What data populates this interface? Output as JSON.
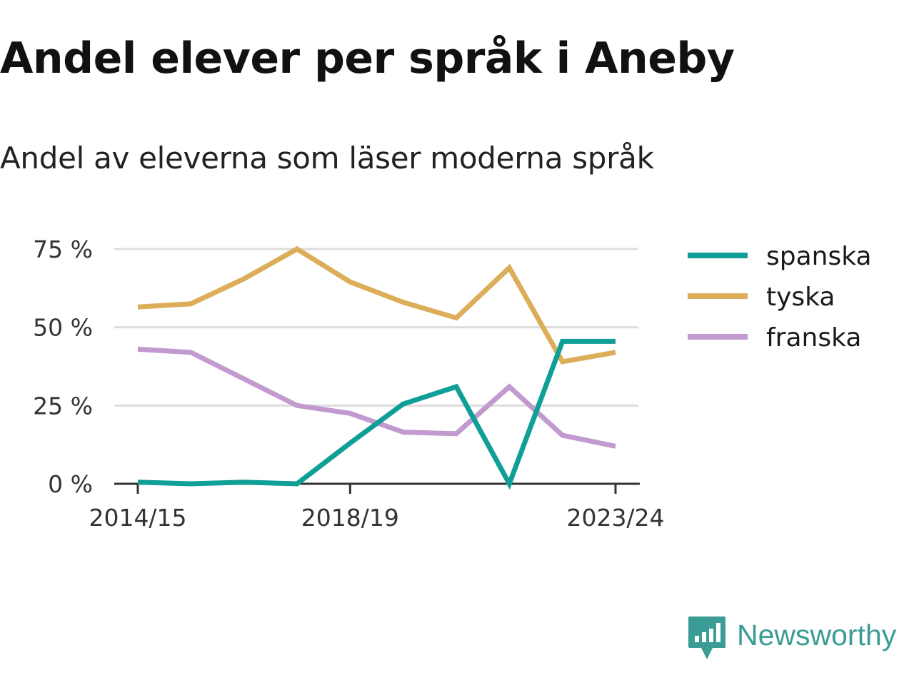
{
  "title": "Andel elever per språk i Aneby",
  "subtitle": "Andel av eleverna som läser moderna språk",
  "brand": {
    "name": "Newsworthy",
    "icon": "newsworthy-logo-icon",
    "color": "#3a9c95"
  },
  "chart_data": {
    "type": "line",
    "x": [
      "2014/15",
      "2015/16",
      "2016/17",
      "2017/18",
      "2018/19",
      "2019/20",
      "2020/21",
      "2021/22",
      "2022/23",
      "2023/24"
    ],
    "x_tick_labels": [
      "2014/15",
      "2018/19",
      "2023/24"
    ],
    "y_ticks": [
      0,
      25,
      50,
      75
    ],
    "y_tick_labels": [
      "0 %",
      "25 %",
      "50 %",
      "75 %"
    ],
    "ylim": [
      0,
      75
    ],
    "grid": true,
    "legend_position": "right",
    "series": [
      {
        "name": "spanska",
        "color": "#0f9f97",
        "values": [
          0.5,
          0,
          0.5,
          0,
          13,
          25.5,
          31,
          0,
          45.5,
          45.5
        ]
      },
      {
        "name": "tyska",
        "color": "#dcae5a",
        "values": [
          56.5,
          57.5,
          65.5,
          75,
          64.5,
          58,
          53,
          69,
          39,
          42
        ]
      },
      {
        "name": "franska",
        "color": "#c29ad0",
        "values": [
          43,
          42,
          33.5,
          25,
          22.5,
          16.5,
          16,
          31,
          15.5,
          12
        ]
      }
    ]
  }
}
